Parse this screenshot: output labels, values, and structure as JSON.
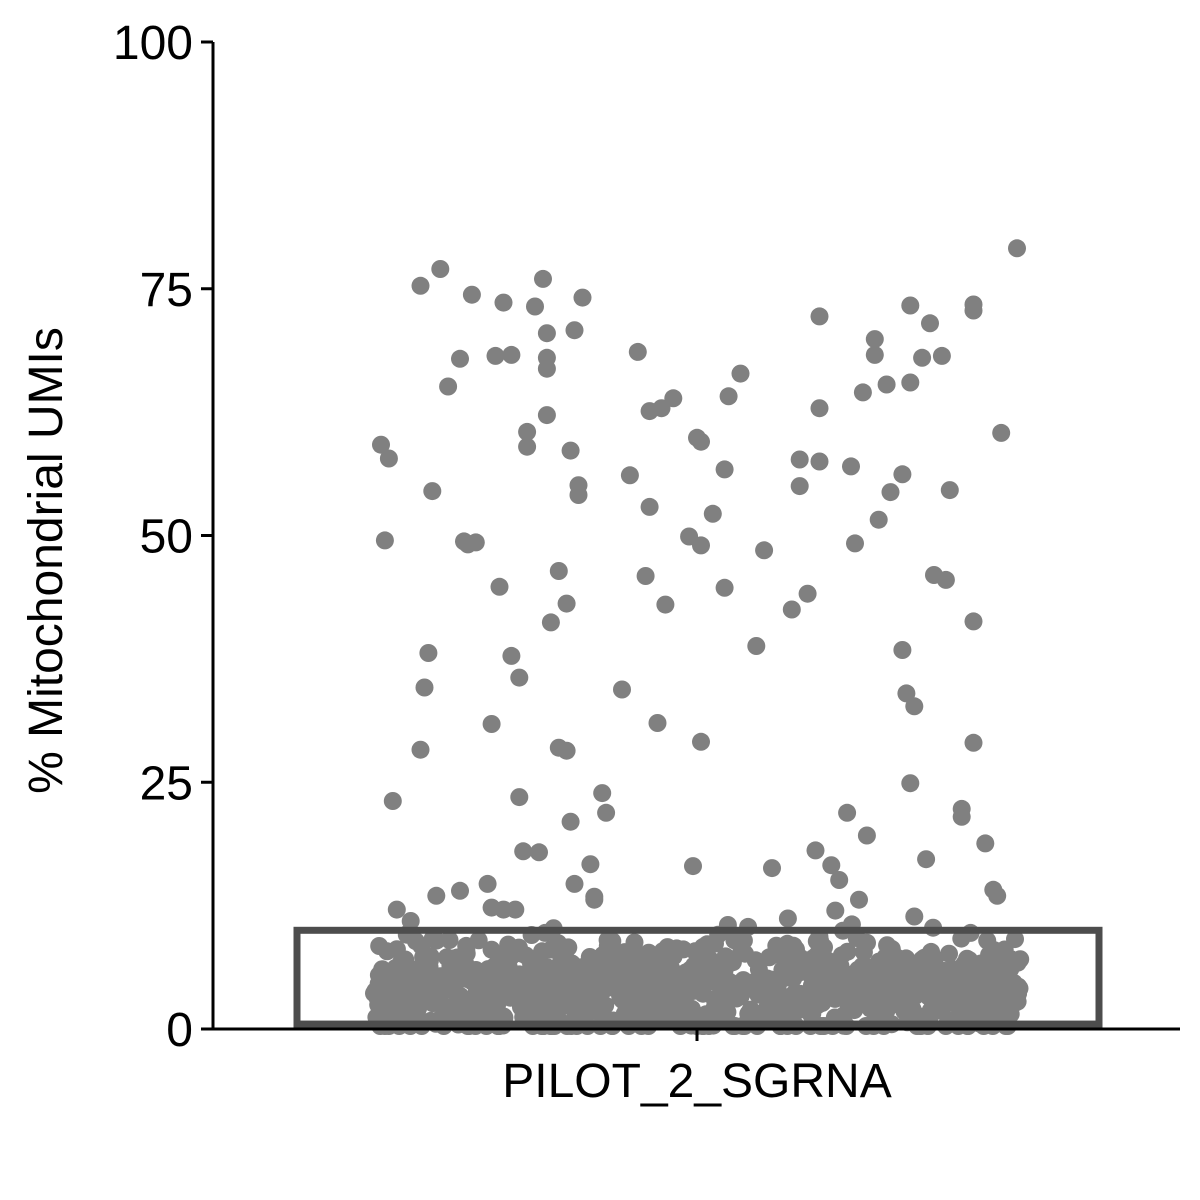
{
  "chart_data": {
    "type": "scatter",
    "subtype": "jitter-strip with boxplot",
    "title": "",
    "xlabel": "",
    "ylabel": "% Mitochondrial UMIs",
    "categories": [
      "PILOT_2_SGRNA"
    ],
    "ylim": [
      0,
      100
    ],
    "yticks": [
      0,
      25,
      50,
      75,
      100
    ],
    "grid": false,
    "legend": "none",
    "colors": {
      "points": "#808080",
      "box": "#4d4d4d",
      "axis": "#000000"
    },
    "box": {
      "q1": 0.5,
      "q3": 10,
      "median": 5
    },
    "high_points": [
      [
        -0.8,
        59.2
      ],
      [
        -0.79,
        49.5
      ],
      [
        -0.78,
        57.8
      ],
      [
        -0.77,
        23.1
      ],
      [
        -0.7,
        75.3
      ],
      [
        -0.69,
        34.6
      ],
      [
        -0.7,
        28.3
      ],
      [
        -0.68,
        38.1
      ],
      [
        -0.67,
        54.5
      ],
      [
        -0.65,
        77.0
      ],
      [
        -0.63,
        65.1
      ],
      [
        -0.6,
        67.9
      ],
      [
        -0.59,
        49.4
      ],
      [
        -0.58,
        49.1
      ],
      [
        -0.57,
        74.4
      ],
      [
        -0.56,
        49.3
      ],
      [
        -0.52,
        30.9
      ],
      [
        -0.51,
        68.2
      ],
      [
        -0.5,
        44.8
      ],
      [
        -0.49,
        73.6
      ],
      [
        -0.47,
        68.3
      ],
      [
        -0.47,
        37.8
      ],
      [
        -0.45,
        23.5
      ],
      [
        -0.45,
        35.6
      ],
      [
        -0.43,
        60.5
      ],
      [
        -0.43,
        59.0
      ],
      [
        -0.41,
        73.2
      ],
      [
        -0.39,
        76.0
      ],
      [
        -0.38,
        62.2
      ],
      [
        -0.38,
        66.9
      ],
      [
        -0.38,
        68.0
      ],
      [
        -0.38,
        70.5
      ],
      [
        -0.37,
        41.2
      ],
      [
        -0.35,
        46.4
      ],
      [
        -0.35,
        28.5
      ],
      [
        -0.33,
        43.1
      ],
      [
        -0.33,
        28.2
      ],
      [
        -0.32,
        58.6
      ],
      [
        -0.32,
        21.0
      ],
      [
        -0.31,
        14.7
      ],
      [
        -0.3,
        55.1
      ],
      [
        -0.3,
        54.1
      ],
      [
        -0.31,
        70.8
      ],
      [
        -0.29,
        74.1
      ],
      [
        -0.27,
        16.7
      ],
      [
        -0.26,
        13.1
      ],
      [
        -0.26,
        13.4
      ],
      [
        -0.24,
        23.9
      ],
      [
        -0.23,
        21.9
      ],
      [
        -0.19,
        34.4
      ],
      [
        -0.17,
        56.1
      ],
      [
        -0.15,
        68.6
      ],
      [
        -0.13,
        45.9
      ],
      [
        -0.12,
        62.6
      ],
      [
        -0.12,
        52.9
      ],
      [
        -0.1,
        31.0
      ],
      [
        -0.09,
        62.9
      ],
      [
        -0.08,
        43.0
      ],
      [
        -0.06,
        63.9
      ],
      [
        -0.02,
        49.9
      ],
      [
        -0.01,
        16.5
      ],
      [
        0.0,
        59.9
      ],
      [
        0.01,
        59.5
      ],
      [
        0.01,
        49.0
      ],
      [
        0.01,
        29.1
      ],
      [
        0.04,
        52.2
      ],
      [
        0.07,
        44.7
      ],
      [
        0.07,
        56.7
      ],
      [
        0.08,
        64.1
      ],
      [
        0.11,
        66.4
      ],
      [
        0.15,
        38.8
      ],
      [
        0.17,
        48.5
      ],
      [
        0.19,
        16.3
      ],
      [
        0.24,
        42.5
      ],
      [
        0.26,
        57.7
      ],
      [
        0.26,
        55.0
      ],
      [
        0.28,
        44.1
      ],
      [
        0.3,
        18.1
      ],
      [
        0.31,
        72.2
      ],
      [
        0.31,
        62.9
      ],
      [
        0.31,
        57.5
      ],
      [
        0.34,
        16.6
      ],
      [
        0.36,
        15.1
      ],
      [
        0.38,
        21.9
      ],
      [
        0.39,
        57.0
      ],
      [
        0.4,
        49.2
      ],
      [
        0.41,
        13.1
      ],
      [
        0.42,
        64.5
      ],
      [
        0.43,
        19.6
      ],
      [
        0.45,
        69.9
      ],
      [
        0.45,
        68.3
      ],
      [
        0.46,
        51.6
      ],
      [
        0.48,
        65.3
      ],
      [
        0.49,
        54.4
      ],
      [
        0.52,
        56.2
      ],
      [
        0.52,
        38.4
      ],
      [
        0.53,
        34.0
      ],
      [
        0.54,
        73.3
      ],
      [
        0.54,
        65.5
      ],
      [
        0.54,
        24.9
      ],
      [
        0.55,
        32.7
      ],
      [
        0.57,
        68.0
      ],
      [
        0.58,
        17.2
      ],
      [
        0.59,
        71.5
      ],
      [
        0.6,
        46.0
      ],
      [
        0.62,
        68.2
      ],
      [
        0.63,
        45.5
      ],
      [
        0.64,
        54.6
      ],
      [
        0.67,
        22.3
      ],
      [
        0.67,
        21.5
      ],
      [
        0.7,
        73.4
      ],
      [
        0.7,
        72.8
      ],
      [
        0.7,
        41.3
      ],
      [
        0.7,
        29.0
      ],
      [
        0.73,
        18.8
      ],
      [
        0.75,
        14.1
      ],
      [
        0.76,
        13.5
      ],
      [
        0.77,
        60.4
      ],
      [
        0.81,
        79.1
      ],
      [
        -0.76,
        12.1
      ],
      [
        -0.66,
        13.5
      ],
      [
        -0.6,
        14.0
      ],
      [
        -0.53,
        14.7
      ],
      [
        -0.49,
        12.1
      ],
      [
        -0.44,
        18.0
      ],
      [
        -0.4,
        17.9
      ],
      [
        -0.46,
        12.1
      ],
      [
        0.35,
        12.0
      ],
      [
        0.23,
        11.2
      ],
      [
        0.55,
        11.4
      ],
      [
        -0.52,
        12.3
      ]
    ],
    "cluster": {
      "y_min": 0.3,
      "y_max": 11.0,
      "y_center": 4.2,
      "x_extent": 0.82,
      "count": 900
    }
  }
}
